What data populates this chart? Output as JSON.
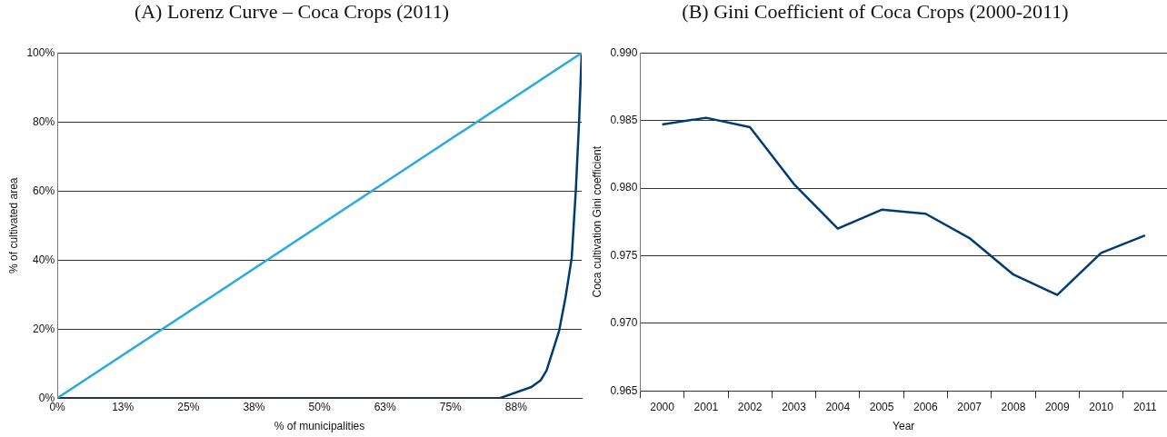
{
  "chart_data": [
    {
      "type": "line",
      "title": "(A) Lorenz Curve – Coca Crops (2011)",
      "xlabel": "% of municipalities",
      "ylabel": "% of cultivated area",
      "series": [
        {
          "color": "#29abe2",
          "x": [
            0,
            100
          ],
          "values": [
            0,
            100
          ]
        },
        {
          "color": "#003b73",
          "x": [
            0,
            82,
            84.4,
            90.4,
            92.2,
            93.3,
            95.7,
            96.9,
            98.1,
            98.9,
            99.5,
            100
          ],
          "values": [
            0,
            0,
            0,
            3.2,
            5.2,
            8,
            19.5,
            29,
            40.6,
            60.7,
            80,
            100
          ]
        }
      ],
      "xlim": [
        0,
        100
      ],
      "xticks": [
        {
          "value": 0,
          "label": "0%"
        },
        {
          "value": 12.5,
          "label": "13%"
        },
        {
          "value": 25,
          "label": "25%"
        },
        {
          "value": 37.5,
          "label": "38%"
        },
        {
          "value": 50,
          "label": "50%"
        },
        {
          "value": 62.5,
          "label": "63%"
        },
        {
          "value": 75,
          "label": "75%"
        },
        {
          "value": 87.5,
          "label": "88%"
        }
      ],
      "ylim": [
        0,
        100
      ],
      "yticks": [
        {
          "value": 0,
          "label": "0%"
        },
        {
          "value": 20,
          "label": "20%"
        },
        {
          "value": 40,
          "label": "40%"
        },
        {
          "value": 60,
          "label": "60%"
        },
        {
          "value": 80,
          "label": "80%"
        },
        {
          "value": 100,
          "label": "100%"
        }
      ],
      "grid": "y",
      "legend": false,
      "marker": "none",
      "line_style": "solid"
    },
    {
      "type": "line",
      "title": "(B) Gini Coefficient of Coca Crops (2000-2011)",
      "xlabel": "Year",
      "ylabel": "Coca cultivation Gini coefficient",
      "categories": [
        "2000",
        "2001",
        "2002",
        "2003",
        "2004",
        "2005",
        "2006",
        "2007",
        "2008",
        "2009",
        "2010",
        "2011"
      ],
      "series": [
        {
          "color": "#003b73",
          "values": [
            0.9847,
            0.9852,
            0.9845,
            0.9803,
            0.977,
            0.9784,
            0.9781,
            0.9763,
            0.9736,
            0.9721,
            0.9752,
            0.9765
          ]
        }
      ],
      "ylim": [
        0.965,
        0.99
      ],
      "yticks": [
        {
          "value": 0.965,
          "label": "0.965"
        },
        {
          "value": 0.97,
          "label": "0.970"
        },
        {
          "value": 0.975,
          "label": "0.975"
        },
        {
          "value": 0.98,
          "label": "0.980"
        },
        {
          "value": 0.985,
          "label": "0.985"
        },
        {
          "value": 0.99,
          "label": "0.990"
        }
      ],
      "grid": "y",
      "legend": false,
      "marker": "none",
      "line_style": "solid"
    }
  ]
}
